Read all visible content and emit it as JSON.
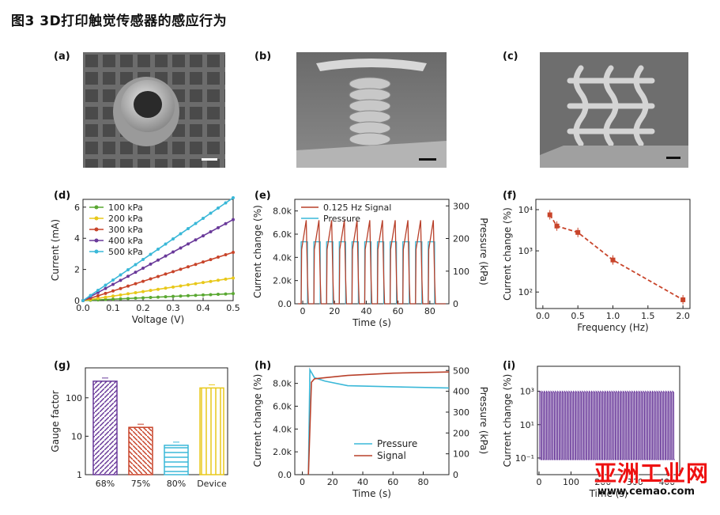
{
  "figure": {
    "title": "图3 3D打印触觉传感器的感应行为",
    "panels": {
      "a": "(a)",
      "b": "(b)",
      "c": "(c)",
      "d": "(d)",
      "e": "(e)",
      "f": "(f)",
      "g": "(g)",
      "h": "(h)",
      "i": "(i)"
    }
  },
  "watermark": {
    "text": "亚洲工业网",
    "url": "www.cemao.com"
  },
  "colors": {
    "green": "#5aa832",
    "yellow": "#e8c81a",
    "red": "#c8442a",
    "purple": "#6a3a9a",
    "cyan": "#3ab8d8",
    "darkred": "#b8402a"
  },
  "chart_data": [
    {
      "panel": "d",
      "type": "line",
      "xlabel": "Voltage (V)",
      "ylabel": "Current (mA)",
      "xlim": [
        0,
        0.5
      ],
      "ylim": [
        0,
        6.5
      ],
      "xticks": [
        "0.0",
        "0.1",
        "0.2",
        "0.3",
        "0.4",
        "0.5"
      ],
      "yticks": [
        "0",
        "2",
        "4",
        "6"
      ],
      "legend_position": "top-left",
      "series": [
        {
          "name": "100 kPa",
          "values": [
            0,
            0.45
          ]
        },
        {
          "name": "200 kPa",
          "values": [
            0,
            1.45
          ]
        },
        {
          "name": "300 kPa",
          "values": [
            0,
            3.1
          ]
        },
        {
          "name": "400 kPa",
          "values": [
            0,
            5.2
          ]
        },
        {
          "name": "500 kPa",
          "values": [
            0,
            6.6
          ]
        }
      ],
      "x": [
        0,
        0.5
      ]
    },
    {
      "panel": "e",
      "type": "line",
      "xlabel": "Time (s)",
      "ylabel": "Current change (%)",
      "ylabel_right": "Pressure (kPa)",
      "xlim": [
        -5,
        92
      ],
      "ylim": [
        0,
        9000
      ],
      "ylim_right": [
        0,
        320
      ],
      "xticks": [
        "0",
        "20",
        "40",
        "60",
        "80"
      ],
      "yticks": [
        "0.0",
        "2.0k",
        "4.0k",
        "6.0k",
        "8.0k"
      ],
      "yticks_right": [
        "0",
        "100",
        "200",
        "300"
      ],
      "legend_position": "top-left",
      "series": [
        {
          "name": "0.125 Hz Signal",
          "peak": 7200,
          "period_s": 8,
          "cycles": 11
        },
        {
          "name": "Pressure",
          "peak_kPa": 190,
          "period_s": 8,
          "cycles": 11
        }
      ]
    },
    {
      "panel": "f",
      "type": "scatter",
      "xlabel": "Frequency (Hz)",
      "ylabel": "Current change (%)",
      "xlim": [
        -0.1,
        2.1
      ],
      "yscale": "log",
      "xticks": [
        "0.0",
        "0.5",
        "1.0",
        "1.5",
        "2.0"
      ],
      "yticks": [
        "10²",
        "10³",
        "10⁴"
      ],
      "x": [
        0.1,
        0.2,
        0.5,
        1.0,
        2.0
      ],
      "values": [
        7500,
        4000,
        2800,
        600,
        65
      ]
    },
    {
      "panel": "g",
      "type": "bar",
      "ylabel": "Gauge factor",
      "yscale": "log",
      "ylim": [
        1,
        600
      ],
      "yticks": [
        "1",
        "10",
        "100"
      ],
      "categories": [
        "68%",
        "75%",
        "80%",
        "Device"
      ],
      "values": [
        270,
        17,
        5.8,
        180
      ]
    },
    {
      "panel": "h",
      "type": "line",
      "xlabel": "Time (s)",
      "ylabel": "Current change (%)",
      "ylabel_right": "Pressure (kPa)",
      "xlim": [
        -5,
        97
      ],
      "ylim": [
        0,
        9500
      ],
      "ylim_right": [
        0,
        520
      ],
      "xticks": [
        "0",
        "20",
        "40",
        "60",
        "80"
      ],
      "yticks": [
        "0.0",
        "2.0k",
        "4.0k",
        "6.0k",
        "8.0k"
      ],
      "yticks_right": [
        "0",
        "100",
        "200",
        "300",
        "400",
        "500"
      ],
      "legend_position": "bottom-right",
      "series": [
        {
          "name": "Pressure",
          "x": [
            4,
            5,
            8,
            15,
            30,
            60,
            97
          ],
          "values": [
            0,
            9200,
            8500,
            8200,
            7800,
            7700,
            7600
          ]
        },
        {
          "name": "Signal",
          "x": [
            4,
            6,
            8,
            15,
            30,
            60,
            97
          ],
          "values": [
            0,
            8100,
            8400,
            8500,
            8700,
            8900,
            9000
          ]
        }
      ]
    },
    {
      "panel": "i",
      "type": "line",
      "xlabel": "Time (s)",
      "ylabel": "Current change (%)",
      "yscale": "log",
      "xlim": [
        -5,
        440
      ],
      "xticks": [
        "0",
        "100",
        "200",
        "300",
        "400"
      ],
      "yticks": [
        "10⁻¹",
        "10¹",
        "10³"
      ],
      "series": [
        {
          "name": "Signal",
          "max": 1000,
          "min": 0.08,
          "cycles": 60
        }
      ]
    }
  ]
}
